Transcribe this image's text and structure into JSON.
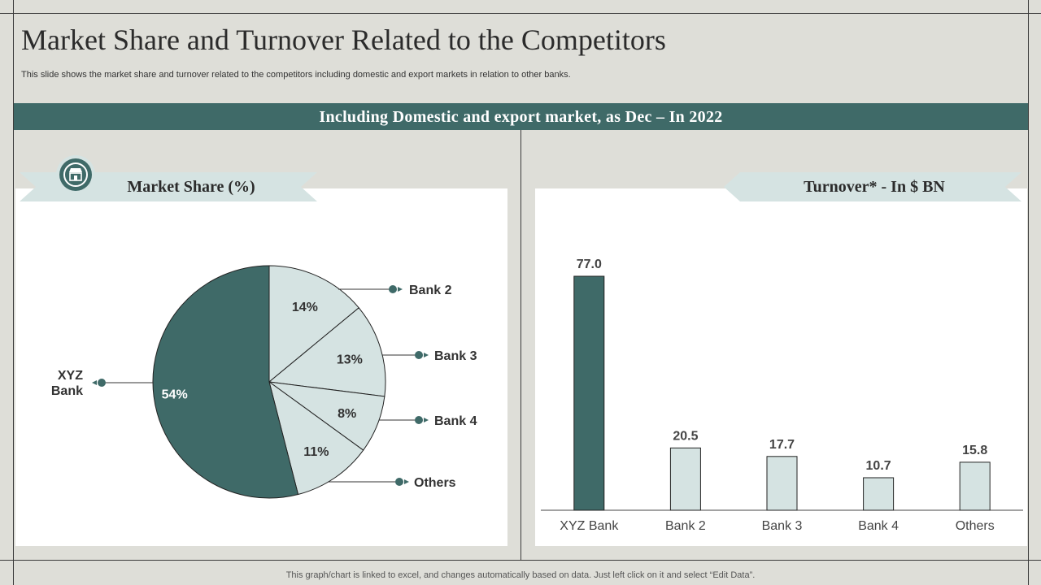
{
  "page": {
    "title": "Market Share and Turnover Related to the Competitors",
    "subtitle": "This slide shows the market share and turnover related to the competitors including domestic and export markets in relation to other banks.",
    "banner": "Including  Domestic and export market, as Dec – In 2022",
    "footer": "This graph/chart is linked to excel,  and changes automatically based on data. Just left click on it and select “Edit Data”."
  },
  "colors": {
    "accent": "#3f6a68",
    "light": "#d5e3e2",
    "background": "#deded8"
  },
  "icons": {
    "market_share": "storefront-badge-icon"
  },
  "chart_data": [
    {
      "type": "pie",
      "title": "Market Share (%)",
      "slices": [
        {
          "label": "Bank 2",
          "value": 14,
          "display": "14%"
        },
        {
          "label": "Bank 3",
          "value": 13,
          "display": "13%"
        },
        {
          "label": "Bank 4",
          "value": 8,
          "display": "8%"
        },
        {
          "label": "Others",
          "value": 11,
          "display": "11%"
        },
        {
          "label": "XYZ Bank",
          "value": 54,
          "display": "54%"
        }
      ]
    },
    {
      "type": "bar",
      "title": "Turnover*  -  In $ BN",
      "categories": [
        "XYZ Bank",
        "Bank 2",
        "Bank 3",
        "Bank 4",
        "Others"
      ],
      "values": [
        77.0,
        20.5,
        17.7,
        10.7,
        15.8
      ],
      "labels": [
        "77.0",
        "20.5",
        "17.7",
        "10.7",
        "15.8"
      ],
      "ylim": [
        0,
        80
      ]
    }
  ]
}
